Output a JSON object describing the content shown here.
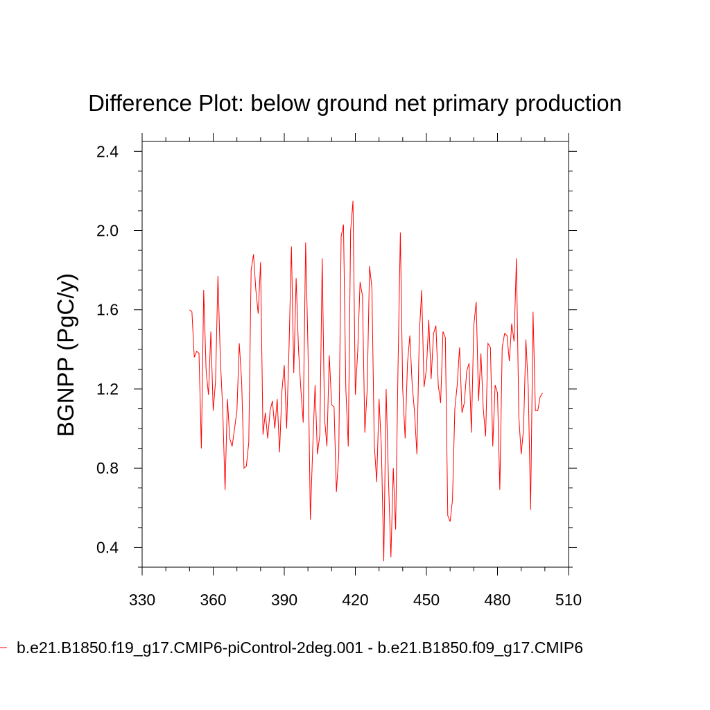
{
  "chart_data": {
    "type": "line",
    "title": "Difference Plot: below ground net primary production",
    "xlabel": "",
    "ylabel": "BGNPP  (PgC/y)",
    "xlim": [
      330,
      510
    ],
    "ylim": [
      0.3,
      2.45
    ],
    "xticks": [
      330,
      360,
      390,
      420,
      450,
      480,
      510
    ],
    "xtick_labels": [
      "330",
      "360",
      "390",
      "420",
      "450",
      "480",
      "510"
    ],
    "yticks": [
      0.4,
      0.8,
      1.2,
      1.6,
      2.0,
      2.4
    ],
    "ytick_labels": [
      "0.4",
      "0.8",
      "1.2",
      "1.6",
      "2.0",
      "2.4"
    ],
    "legend": {
      "placement": "bottom-left"
    },
    "series": [
      {
        "name": "b.e21.B1850.f19_g17.CMIP6-piControl-2deg.001 - b.e21.B1850.f09_g17.CMIP6",
        "color": "#ff0000",
        "x": [
          350,
          351,
          352,
          353,
          354,
          355,
          356,
          357,
          358,
          359,
          360,
          361,
          362,
          363,
          364,
          365,
          366,
          367,
          368,
          369,
          370,
          371,
          372,
          373,
          374,
          375,
          376,
          377,
          378,
          379,
          380,
          381,
          382,
          383,
          384,
          385,
          386,
          387,
          388,
          389,
          390,
          391,
          392,
          393,
          394,
          395,
          396,
          397,
          398,
          399,
          400,
          401,
          402,
          403,
          404,
          405,
          406,
          407,
          408,
          409,
          410,
          411,
          412,
          413,
          414,
          415,
          416,
          417,
          418,
          419,
          420,
          421,
          422,
          423,
          424,
          425,
          426,
          427,
          428,
          429,
          430,
          431,
          432,
          433,
          434,
          435,
          436,
          437,
          438,
          439,
          440,
          441,
          442,
          443,
          444,
          445,
          446,
          447,
          448,
          449,
          450,
          451,
          452,
          453,
          454,
          455,
          456,
          457,
          458,
          459,
          460,
          461,
          462,
          463,
          464,
          465,
          466,
          467,
          468,
          469,
          470,
          471,
          472,
          473,
          474,
          475,
          476,
          477,
          478,
          479,
          480,
          481,
          482,
          483,
          484,
          485,
          486,
          487,
          488,
          489,
          490,
          491,
          492,
          493,
          494,
          495,
          496,
          497,
          498,
          499
        ],
        "y": [
          1.6,
          1.59,
          1.36,
          1.39,
          1.38,
          0.9,
          1.7,
          1.29,
          1.17,
          1.49,
          1.09,
          1.24,
          1.77,
          1.35,
          1.1,
          0.69,
          1.15,
          0.95,
          0.91,
          1.0,
          1.09,
          1.43,
          1.24,
          0.8,
          0.81,
          0.93,
          1.8,
          1.88,
          1.7,
          1.58,
          1.84,
          0.97,
          1.08,
          0.95,
          1.09,
          1.14,
          1.0,
          1.15,
          0.88,
          1.19,
          1.32,
          1.0,
          1.4,
          1.92,
          1.28,
          1.76,
          1.4,
          1.2,
          1.03,
          1.94,
          1.4,
          0.54,
          0.9,
          1.22,
          0.87,
          0.97,
          1.86,
          1.05,
          0.91,
          1.37,
          1.12,
          1.11,
          0.68,
          0.87,
          1.97,
          2.03,
          1.2,
          0.91,
          2.0,
          2.15,
          1.17,
          1.39,
          1.74,
          1.67,
          0.98,
          1.2,
          1.82,
          1.71,
          0.92,
          0.73,
          1.15,
          0.9,
          0.33,
          1.2,
          0.74,
          0.35,
          0.8,
          0.49,
          1.3,
          1.99,
          1.2,
          0.95,
          1.33,
          1.47,
          1.22,
          1.08,
          0.87,
          1.48,
          1.7,
          1.21,
          1.3,
          1.55,
          1.25,
          1.48,
          1.52,
          1.22,
          1.13,
          1.49,
          1.46,
          0.56,
          0.53,
          0.64,
          1.1,
          1.22,
          1.41,
          1.08,
          1.13,
          1.29,
          1.33,
          0.98,
          1.52,
          1.64,
          1.14,
          1.38,
          1.1,
          0.96,
          1.43,
          1.41,
          0.91,
          1.22,
          1.18,
          0.69,
          1.41,
          1.48,
          1.47,
          1.34,
          1.53,
          1.44,
          1.86,
          1.06,
          0.87,
          1.0,
          1.45,
          1.2,
          0.59,
          1.59,
          1.09,
          1.09,
          1.16,
          1.18
        ]
      }
    ]
  }
}
